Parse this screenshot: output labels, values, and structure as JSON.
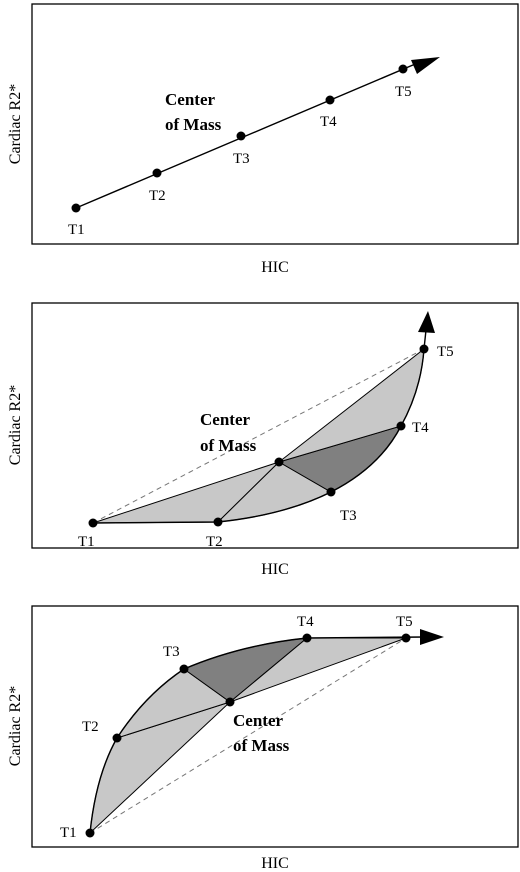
{
  "panels": [
    {
      "id": "top",
      "x_label": "HIC",
      "y_label": "Cardiac R2*",
      "center_label_line1": "Center",
      "center_label_line2": "of Mass",
      "points": [
        {
          "label": "T1"
        },
        {
          "label": "T2"
        },
        {
          "label": "T3"
        },
        {
          "label": "T4"
        },
        {
          "label": "T5"
        }
      ]
    },
    {
      "id": "middle",
      "x_label": "HIC",
      "y_label": "Cardiac R2*",
      "center_label_line1": "Center",
      "center_label_line2": "of Mass",
      "points": [
        {
          "label": "T1"
        },
        {
          "label": "T2"
        },
        {
          "label": "T3"
        },
        {
          "label": "T4"
        },
        {
          "label": "T5"
        }
      ]
    },
    {
      "id": "bottom",
      "x_label": "HIC",
      "y_label": "Cardiac R2*",
      "center_label_line1": "Center",
      "center_label_line2": "of Mass",
      "points": [
        {
          "label": "T1"
        },
        {
          "label": "T2"
        },
        {
          "label": "T3"
        },
        {
          "label": "T4"
        },
        {
          "label": "T5"
        }
      ]
    }
  ],
  "colors": {
    "light_fill": "#c8c8c8",
    "dark_fill": "#808080"
  }
}
